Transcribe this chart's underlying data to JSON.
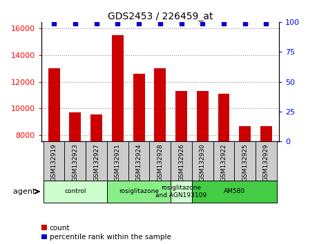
{
  "title": "GDS2453 / 226459_at",
  "samples": [
    "GSM132919",
    "GSM132923",
    "GSM132927",
    "GSM132921",
    "GSM132924",
    "GSM132928",
    "GSM132926",
    "GSM132930",
    "GSM132922",
    "GSM132925",
    "GSM132929"
  ],
  "counts": [
    13000,
    9700,
    9550,
    15500,
    12600,
    13000,
    11300,
    11300,
    11100,
    8650,
    8650
  ],
  "ylim_left": [
    7500,
    16500
  ],
  "ylim_right": [
    0,
    100
  ],
  "yticks_left": [
    8000,
    10000,
    12000,
    14000,
    16000
  ],
  "yticks_right": [
    0,
    25,
    50,
    75,
    100
  ],
  "bar_color": "#cc0000",
  "dot_color": "#0000cc",
  "dot_percentile": 99,
  "agent_groups": [
    {
      "label": "control",
      "start": 0,
      "end": 3,
      "color": "#ccffcc"
    },
    {
      "label": "rosiglitazone",
      "start": 3,
      "end": 6,
      "color": "#88ee88"
    },
    {
      "label": "rosiglitazone\nand AGN193109",
      "start": 6,
      "end": 7,
      "color": "#ccffcc"
    },
    {
      "label": "AM580",
      "start": 7,
      "end": 11,
      "color": "#44cc44"
    }
  ],
  "agent_label": "agent",
  "legend_count_label": "count",
  "legend_percentile_label": "percentile rank within the sample",
  "bar_color_legend": "#cc0000",
  "dot_color_legend": "#0000cc",
  "grid_linestyle": "dotted",
  "grid_color": "#888888",
  "tick_bg_color": "#cccccc",
  "xlim": [
    -0.6,
    10.6
  ]
}
